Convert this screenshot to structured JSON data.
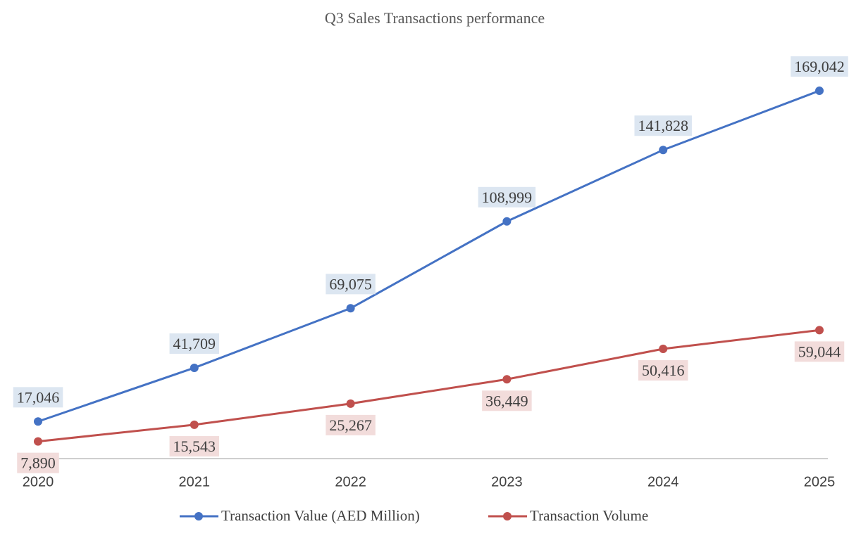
{
  "chart_data": {
    "type": "line",
    "title": "Q3 Sales Transactions performance",
    "categories": [
      "2020",
      "2021",
      "2022",
      "2023",
      "2024",
      "2025"
    ],
    "series": [
      {
        "name": "Transaction Value (AED Million)",
        "color": "#4472c4",
        "values": [
          17046,
          41709,
          69075,
          108999,
          141828,
          169042
        ],
        "value_labels": [
          "17,046",
          "41,709",
          "69,075",
          "108,999",
          "141,828",
          "169,042"
        ]
      },
      {
        "name": "Transaction Volume",
        "color": "#c0504d",
        "values": [
          7890,
          15543,
          25267,
          36449,
          50416,
          59044
        ],
        "value_labels": [
          "7,890",
          "15,543",
          "25,267",
          "36,449",
          "50,416",
          "59,044"
        ]
      }
    ]
  }
}
